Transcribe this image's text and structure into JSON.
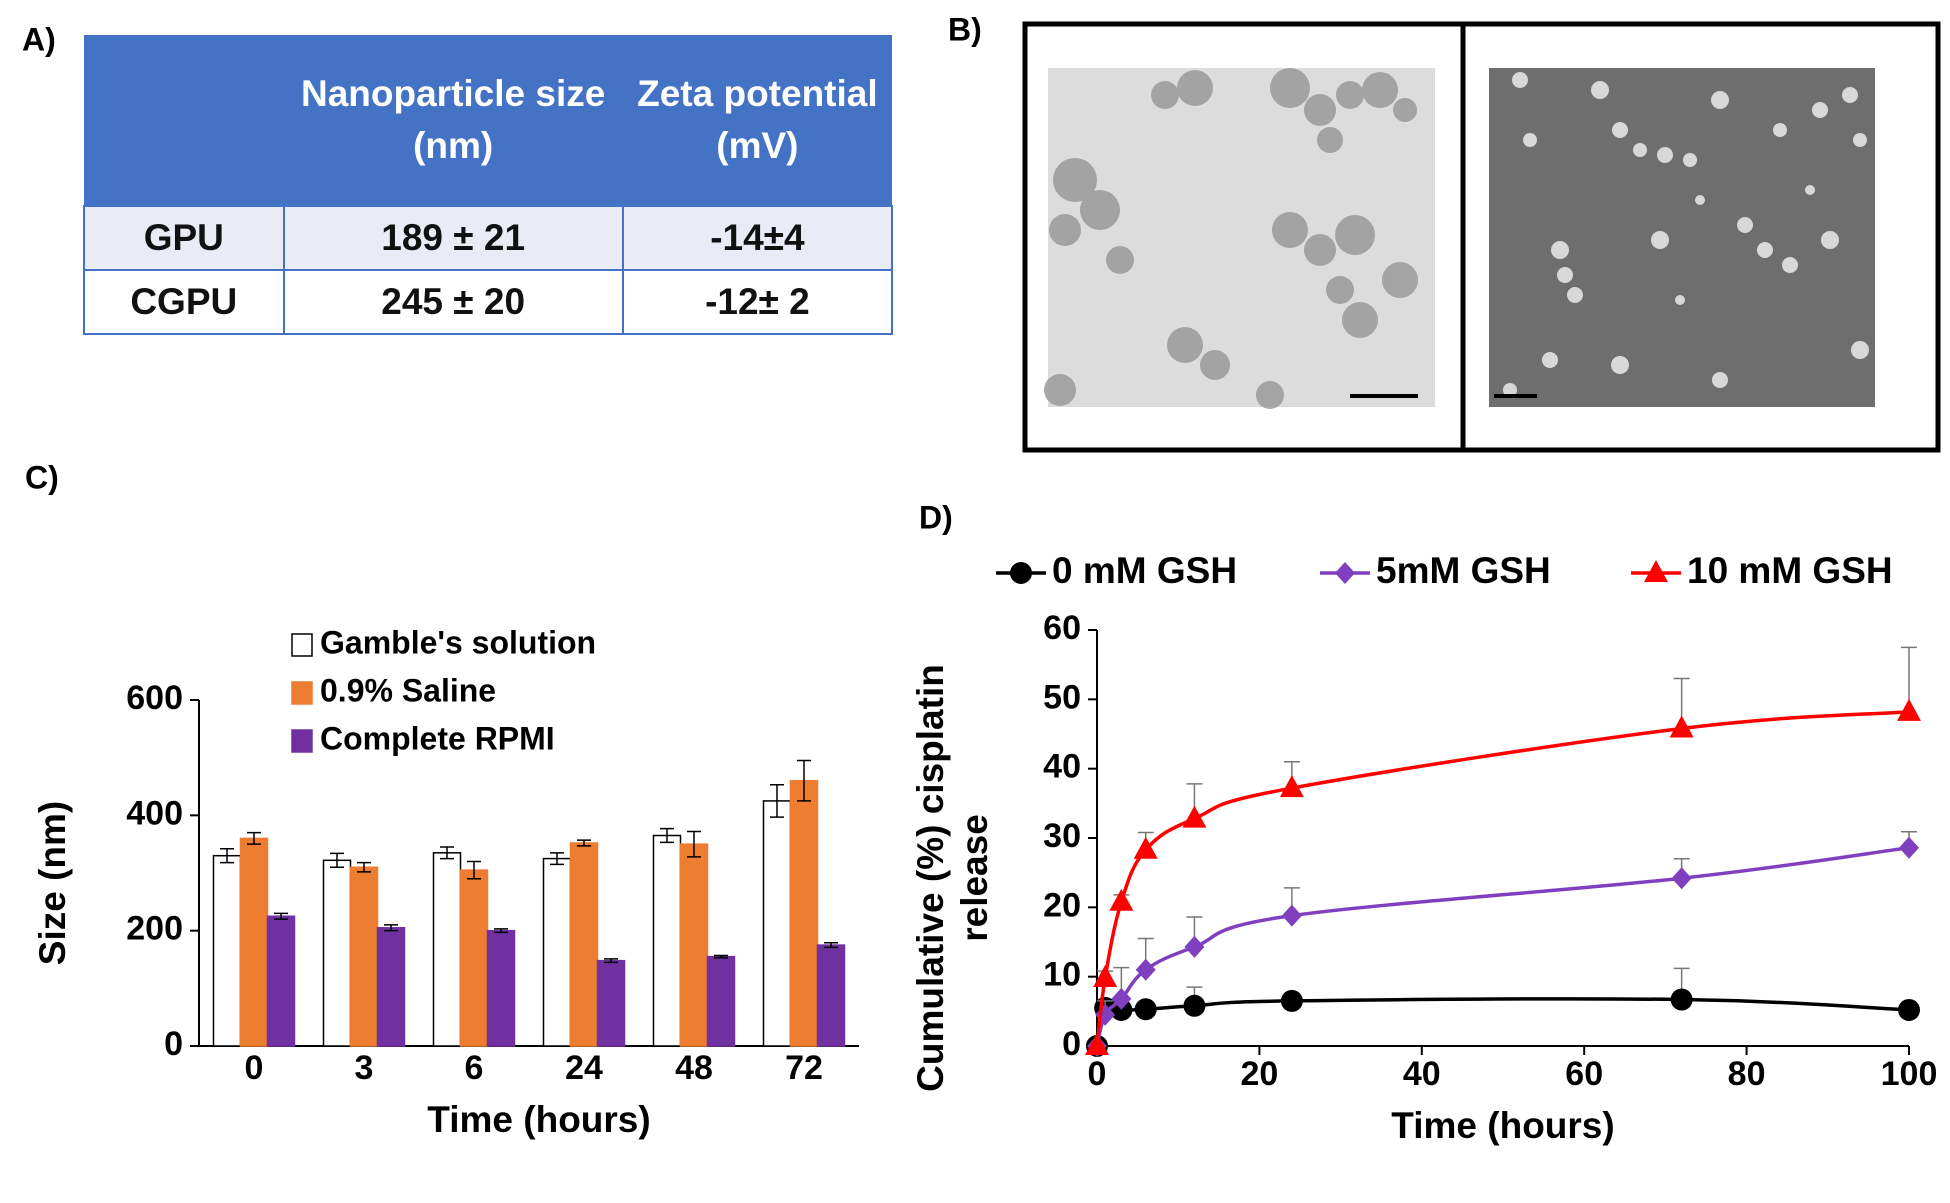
{
  "panel_labels": [
    "A)",
    "B)",
    "C)",
    "D)"
  ],
  "table": {
    "columns": [
      "Nanoparticle size (nm)",
      "Zeta potential (mV)"
    ],
    "rows": [
      [
        "GPU",
        "189 ± 21",
        "-14±4"
      ],
      [
        "CGPU",
        "245 ± 20",
        "-12± 2"
      ]
    ]
  },
  "chart_data": [
    {
      "type": "bar",
      "x_label": "Time (hours)",
      "y_label": "Size (nm)",
      "categories": [
        "0",
        "3",
        "6",
        "24",
        "48",
        "72"
      ],
      "ylim": [
        0,
        600
      ],
      "yticks": [
        0,
        200,
        400,
        600
      ],
      "legend": "top-left",
      "series": [
        {
          "name": "Gamble's solution",
          "color": "#ffffff",
          "values": [
            330,
            322,
            335,
            325,
            365,
            425
          ],
          "errors": [
            12,
            12,
            10,
            10,
            12,
            28
          ]
        },
        {
          "name": "0.9% Saline",
          "color": "#ed7d31",
          "values": [
            360,
            310,
            305,
            352,
            350,
            460
          ],
          "errors": [
            10,
            8,
            15,
            5,
            22,
            35
          ]
        },
        {
          "name": "Complete RPMI",
          "color": "#7030a0",
          "values": [
            225,
            205,
            200,
            148,
            155,
            175
          ],
          "errors": [
            5,
            5,
            3,
            3,
            2,
            4
          ]
        }
      ]
    },
    {
      "type": "line",
      "x_label": "Time (hours)",
      "y_label": [
        "Cumulative (%) cisplatin",
        "release"
      ],
      "x": [
        0,
        1,
        3,
        6,
        12,
        24,
        72,
        100
      ],
      "xlim": [
        0,
        100
      ],
      "xticks": [
        0,
        20,
        40,
        60,
        80,
        100
      ],
      "ylim": [
        0,
        60
      ],
      "yticks": [
        0,
        10,
        20,
        30,
        40,
        50,
        60
      ],
      "legend": "top",
      "series": [
        {
          "name": "0 mM GSH",
          "color": "#000000",
          "marker": "circle",
          "values": [
            0,
            5.5,
            5.2,
            5.3,
            5.8,
            6.5,
            6.7,
            5.2
          ],
          "errors": [
            0,
            1,
            1,
            1,
            2.7,
            0.5,
            4.5,
            0.5
          ]
        },
        {
          "name": "5mM GSH",
          "color": "#7f3fbf",
          "marker": "diamond",
          "values": [
            0,
            4.5,
            6.8,
            11,
            14.3,
            18.8,
            24.2,
            28.6
          ],
          "errors": [
            0,
            2,
            4.5,
            4.5,
            4.3,
            4,
            2.8,
            2.3
          ]
        },
        {
          "name": "10 mM GSH",
          "color": "#ff0000",
          "marker": "triangle",
          "values": [
            0,
            9.8,
            20.8,
            28.3,
            32.8,
            37.2,
            45.8,
            48.2
          ],
          "errors": [
            0,
            1,
            1,
            2.5,
            5,
            3.8,
            7.2,
            9.3
          ]
        }
      ]
    }
  ]
}
